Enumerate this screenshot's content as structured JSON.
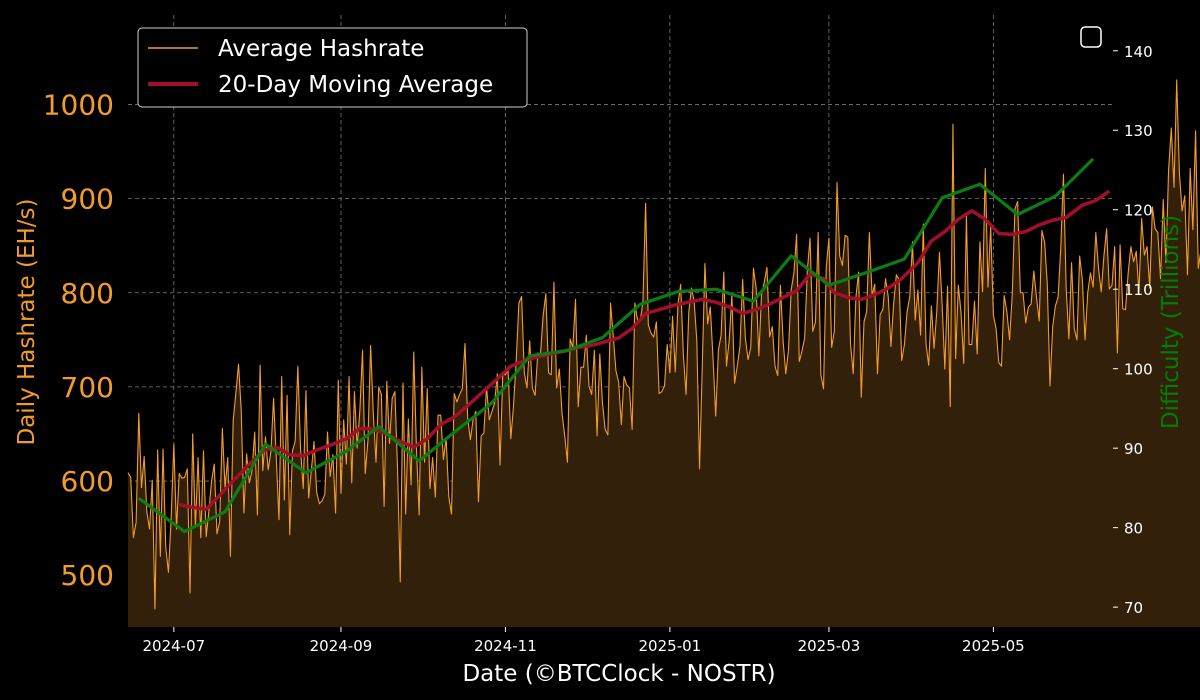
{
  "chart_data": {
    "type": "line",
    "xlabel": "Date (©BTCClock - NOSTR)",
    "ylabel_left": "Daily Hashrate (EH/s)",
    "ylabel_right": "Difficulty (Trillions)",
    "x_range": [
      "2024-06-14",
      "2025-06-14"
    ],
    "ylim_left": [
      445,
      1095
    ],
    "ylim_right": [
      67.5,
      144.5
    ],
    "x_ticks": [
      "2024-07",
      "2024-09",
      "2024-11",
      "2025-01",
      "2025-03",
      "2025-05"
    ],
    "y_ticks_left": [
      500,
      600,
      700,
      800,
      900,
      1000
    ],
    "y_ticks_right": [
      70,
      80,
      90,
      100,
      110,
      120,
      130,
      140
    ],
    "grid": true,
    "legend_position": "top-left",
    "colors": {
      "background": "#000000",
      "hashrate": "#f39c2b",
      "hashrate_fill": "#33200a",
      "moving_average": "#a30f2a",
      "difficulty": "#0b7d12",
      "left_axis": "#f39c2b",
      "right_axis": "#008000",
      "grid": "#7a7a7a",
      "text": "#ffffff"
    },
    "series": [
      {
        "name": "Average Hashrate",
        "axis": "left",
        "style": "thin-line-with-area-fill",
        "start_date": "2024-06-14",
        "step_days": 1,
        "values": [
          609,
          604,
          540,
          556,
          672,
          593,
          626,
          567,
          549,
          601,
          464,
          633,
          520,
          634,
          530,
          503,
          560,
          639,
          549,
          608,
          603,
          604,
          613,
          481,
          650,
          551,
          625,
          540,
          632,
          541,
          568,
          600,
          618,
          544,
          557,
          656,
          593,
          625,
          520,
          664,
          693,
          724,
          675,
          566,
          629,
          598,
          611,
          652,
          564,
          723,
          611,
          647,
          612,
          631,
          688,
          625,
          559,
          711,
          580,
          691,
          543,
          632,
          642,
          722,
          634,
          592,
          696,
          582,
          611,
          642,
          588,
          576,
          579,
          586,
          652,
          605,
          628,
          566,
          707,
          587,
          665,
          618,
          711,
          598,
          695,
          635,
          675,
          739,
          608,
          643,
          744,
          671,
          620,
          700,
          692,
          573,
          706,
          640,
          688,
          695,
          612,
          493,
          704,
          565,
          666,
          596,
          737,
          634,
          564,
          721,
          620,
          698,
          592,
          625,
          583,
          670,
          670,
          623,
          646,
          583,
          565,
          693,
          684,
          692,
          698,
          746,
          667,
          644,
          665,
          674,
          578,
          648,
          651,
          700,
          665,
          674,
          683,
          714,
          617,
          713,
          713,
          718,
          645,
          680,
          728,
          789,
          796,
          715,
          699,
          749,
          699,
          691,
          736,
          735,
          776,
          799,
          715,
          713,
          811,
          699,
          719,
          672,
          648,
          620,
          751,
          742,
          793,
          679,
          721,
          721,
          755,
          701,
          692,
          739,
          648,
          735,
          683,
          655,
          649,
          789,
          754,
          717,
          705,
          660,
          711,
          702,
          699,
          655,
          789,
          771,
          770,
          790,
          895,
          766,
          757,
          753,
          769,
          693,
          695,
          701,
          745,
          715,
          775,
          716,
          788,
          809,
          734,
          692,
          779,
          805,
          791,
          749,
          613,
          720,
          831,
          767,
          785,
          731,
          669,
          739,
          755,
          822,
          722,
          749,
          798,
          704,
          722,
          743,
          814,
          752,
          729,
          742,
          826,
          805,
          733,
          798,
          811,
          827,
          753,
          764,
          722,
          712,
          808,
          749,
          714,
          739,
          803,
          821,
          862,
          727,
          738,
          752,
          824,
          858,
          759,
          769,
          864,
          713,
          698,
          827,
          858,
          742,
          759,
          917,
          839,
          829,
          861,
          859,
          746,
          714,
          795,
          822,
          689,
          769,
          780,
          864,
          797,
          809,
          714,
          777,
          782,
          815,
          796,
          743,
          788,
          819,
          814,
          728,
          745,
          780,
          796,
          854,
          771,
          803,
          755,
          873,
          746,
          723,
          786,
          741,
          780,
          843,
          787,
          719,
          807,
          679,
          979,
          730,
          808,
          779,
          725,
          882,
          745,
          745,
          791,
          735,
          854,
          801,
          932,
          806,
          871,
          776,
          762,
          726,
          722,
          797,
          780,
          750,
          798,
          889,
          897,
          800,
          800,
          768,
          785,
          788,
          823,
          795,
          770,
          866,
          854,
          809,
          701,
          764,
          786,
          795,
          848,
          926,
          805,
          751,
          832,
          762,
          750,
          839,
          814,
          750,
          800,
          821,
          806,
          864,
          826,
          801,
          839,
          868,
          804,
          808,
          849,
          736,
          851,
          783,
          782,
          821,
          849,
          833,
          844,
          800,
          879,
          840,
          849,
          805,
          891,
          868,
          864,
          815,
          899,
          832,
          931,
          975,
          912,
          1026,
          927,
          887,
          903,
          819,
          932,
          867,
          972,
          826,
          846,
          912,
          791,
          877,
          918,
          899,
          871,
          1004,
          942,
          846,
          898,
          840,
          833,
          881,
          908,
          946,
          875,
          917,
          925,
          927,
          891,
          870,
          909,
          900,
          857,
          925,
          949,
          830,
          902,
          910,
          935,
          956,
          889,
          880,
          862,
          893,
          830,
          839,
          865,
          902,
          754,
          887,
          807,
          847,
          874,
          694,
          871,
          851,
          887,
          870,
          819,
          854,
          899,
          852,
          847,
          815,
          920,
          870,
          836,
          803,
          855,
          896,
          935,
          932,
          947,
          970,
          987,
          853,
          901,
          897,
          847,
          818,
          896,
          868,
          923,
          862,
          805,
          839,
          881,
          900,
          917,
          855,
          849,
          844,
          757,
          861,
          849,
          913,
          933,
          931,
          885,
          893,
          913,
          919,
          912,
          928,
          892,
          861,
          833,
          876,
          919,
          985,
          895,
          923,
          902,
          914,
          887,
          1019,
          857,
          834,
          894,
          895,
          929,
          899,
          797,
          832,
          821,
          833,
          839,
          889,
          938,
          937,
          920,
          928,
          946,
          1047,
          960,
          890
        ]
      },
      {
        "name": "20-Day Moving Average",
        "axis": "left",
        "style": "thick-line",
        "points": [
          [
            "2024-07-03",
            575
          ],
          [
            "2024-07-08",
            572
          ],
          [
            "2024-07-13",
            570
          ],
          [
            "2024-07-18",
            585
          ],
          [
            "2024-07-23",
            600
          ],
          [
            "2024-07-28",
            615
          ],
          [
            "2024-08-03",
            632
          ],
          [
            "2024-08-08",
            636
          ],
          [
            "2024-08-13",
            628
          ],
          [
            "2024-08-18",
            627
          ],
          [
            "2024-08-23",
            633
          ],
          [
            "2024-08-28",
            638
          ],
          [
            "2024-09-03",
            645
          ],
          [
            "2024-09-08",
            656
          ],
          [
            "2024-09-13",
            655
          ],
          [
            "2024-09-18",
            650
          ],
          [
            "2024-09-23",
            642
          ],
          [
            "2024-09-28",
            636
          ],
          [
            "2024-10-03",
            645
          ],
          [
            "2024-10-08",
            660
          ],
          [
            "2024-10-13",
            668
          ],
          [
            "2024-10-18",
            680
          ],
          [
            "2024-10-23",
            693
          ],
          [
            "2024-10-28",
            706
          ],
          [
            "2024-11-03",
            722
          ],
          [
            "2024-11-08",
            728
          ],
          [
            "2024-11-13",
            732
          ],
          [
            "2024-11-18",
            735
          ],
          [
            "2024-11-23",
            738
          ],
          [
            "2024-11-28",
            742
          ],
          [
            "2024-12-03",
            744
          ],
          [
            "2024-12-08",
            748
          ],
          [
            "2024-12-13",
            752
          ],
          [
            "2024-12-18",
            762
          ],
          [
            "2024-12-23",
            778
          ],
          [
            "2024-12-28",
            782
          ],
          [
            "2025-01-03",
            787
          ],
          [
            "2025-01-08",
            790
          ],
          [
            "2025-01-13",
            793
          ],
          [
            "2025-01-18",
            790
          ],
          [
            "2025-01-23",
            785
          ],
          [
            "2025-01-28",
            778
          ],
          [
            "2025-02-02",
            782
          ],
          [
            "2025-02-07",
            788
          ],
          [
            "2025-02-12",
            795
          ],
          [
            "2025-02-17",
            802
          ],
          [
            "2025-02-22",
            820
          ],
          [
            "2025-02-27",
            815
          ],
          [
            "2025-03-03",
            800
          ],
          [
            "2025-03-08",
            795
          ],
          [
            "2025-03-13",
            793
          ],
          [
            "2025-03-18",
            798
          ],
          [
            "2025-03-23",
            805
          ],
          [
            "2025-03-28",
            815
          ],
          [
            "2025-04-03",
            832
          ],
          [
            "2025-04-08",
            855
          ],
          [
            "2025-04-13",
            865
          ],
          [
            "2025-04-18",
            878
          ],
          [
            "2025-04-23",
            887
          ],
          [
            "2025-04-28",
            878
          ],
          [
            "2025-05-03",
            863
          ],
          [
            "2025-05-08",
            862
          ],
          [
            "2025-05-13",
            865
          ],
          [
            "2025-05-18",
            872
          ],
          [
            "2025-05-23",
            877
          ],
          [
            "2025-05-28",
            880
          ],
          [
            "2025-06-03",
            893
          ],
          [
            "2025-06-08",
            898
          ],
          [
            "2025-06-13",
            908
          ]
        ]
      },
      {
        "name": "Difficulty",
        "axis": "right",
        "style": "thick-line",
        "points": [
          [
            "2024-06-18",
            83.7
          ],
          [
            "2024-07-05",
            79.5
          ],
          [
            "2024-07-20",
            82.0
          ],
          [
            "2024-08-04",
            90.5
          ],
          [
            "2024-08-19",
            86.9
          ],
          [
            "2024-09-03",
            89.6
          ],
          [
            "2024-09-15",
            92.7
          ],
          [
            "2024-09-30",
            88.4
          ],
          [
            "2024-10-13",
            92.0
          ],
          [
            "2024-10-27",
            95.7
          ],
          [
            "2024-11-10",
            101.6
          ],
          [
            "2024-11-24",
            102.3
          ],
          [
            "2024-12-07",
            103.9
          ],
          [
            "2024-12-21",
            108.1
          ],
          [
            "2025-01-04",
            109.7
          ],
          [
            "2025-01-18",
            110.0
          ],
          [
            "2025-02-01",
            108.5
          ],
          [
            "2025-02-15",
            114.2
          ],
          [
            "2025-03-01",
            110.5
          ],
          [
            "2025-03-15",
            112.1
          ],
          [
            "2025-03-29",
            113.8
          ],
          [
            "2025-04-12",
            121.5
          ],
          [
            "2025-04-26",
            123.2
          ],
          [
            "2025-05-10",
            119.4
          ],
          [
            "2025-05-24",
            121.7
          ],
          [
            "2025-06-07",
            126.4
          ]
        ]
      }
    ]
  },
  "legend": {
    "items": [
      {
        "label": "Average Hashrate",
        "color": "#f39c2b"
      },
      {
        "label": "20-Day Moving Average",
        "color": "#a30f2a"
      }
    ]
  },
  "checkbox": {
    "checked": false
  }
}
